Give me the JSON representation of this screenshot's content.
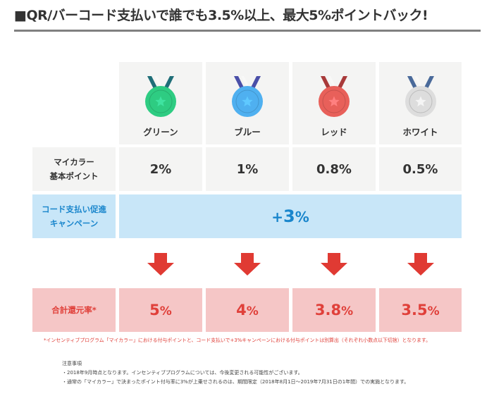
{
  "header": {
    "title": "■QR/バーコード支払いで誰でも3.5%以上、最大5%ポイントバック!"
  },
  "table": {
    "tiers": [
      {
        "name": "グリーン",
        "medal_icon": "green-medal-icon",
        "color": "#2ecc82",
        "ribbon": "#1f6e78",
        "star": "#3fe3a0"
      },
      {
        "name": "ブルー",
        "medal_icon": "blue-medal-icon",
        "color": "#4fb0f0",
        "ribbon": "#4a4fa8",
        "star": "#5fc9ff"
      },
      {
        "name": "レッド",
        "medal_icon": "red-medal-icon",
        "color": "#e8605a",
        "ribbon": "#a83a3a",
        "star": "#ff8080"
      },
      {
        "name": "ホワイト",
        "medal_icon": "white-medal-icon",
        "color": "#dddddd",
        "ribbon": "#4a6a9a",
        "star": "#f5f5f5"
      }
    ],
    "base_points": {
      "label_line1": "マイカラー",
      "label_line2": "基本ポイント",
      "values": [
        "2%",
        "1%",
        "0.8%",
        "0.5%"
      ]
    },
    "campaign": {
      "label_line1": "コード支払い促進",
      "label_line2": "キャンペーン",
      "value_sign": "+",
      "value_number": "3",
      "value_unit": "%"
    },
    "total": {
      "label": "合計還元率*",
      "values": [
        {
          "number": "5",
          "unit": "%"
        },
        {
          "number": "4",
          "unit": "%"
        },
        {
          "number": "3.8",
          "unit": "%"
        },
        {
          "number": "3.5",
          "unit": "%"
        }
      ]
    }
  },
  "footnote": "*インセンティブプログラム「マイカラー」における付与ポイントと、コード支払いで+3%キャンペーンにおける付与ポイントは別算出（それぞれ小数点以下切捨）となります。",
  "notes": {
    "heading": "注意事項",
    "items": [
      "・2018年9月時点となります。インセンティブプログラムについては、今後変更される可能性がございます。",
      "・通常の「マイカラー」で決まったポイント付与率に3%が上乗せされるのは、期間限定（2018年8月1日～2019年7月31日の1年間）での実施となります。"
    ]
  },
  "colors": {
    "arrow": "#e03a33",
    "accent_blue": "#1a86cc",
    "accent_red": "#e0403a"
  }
}
